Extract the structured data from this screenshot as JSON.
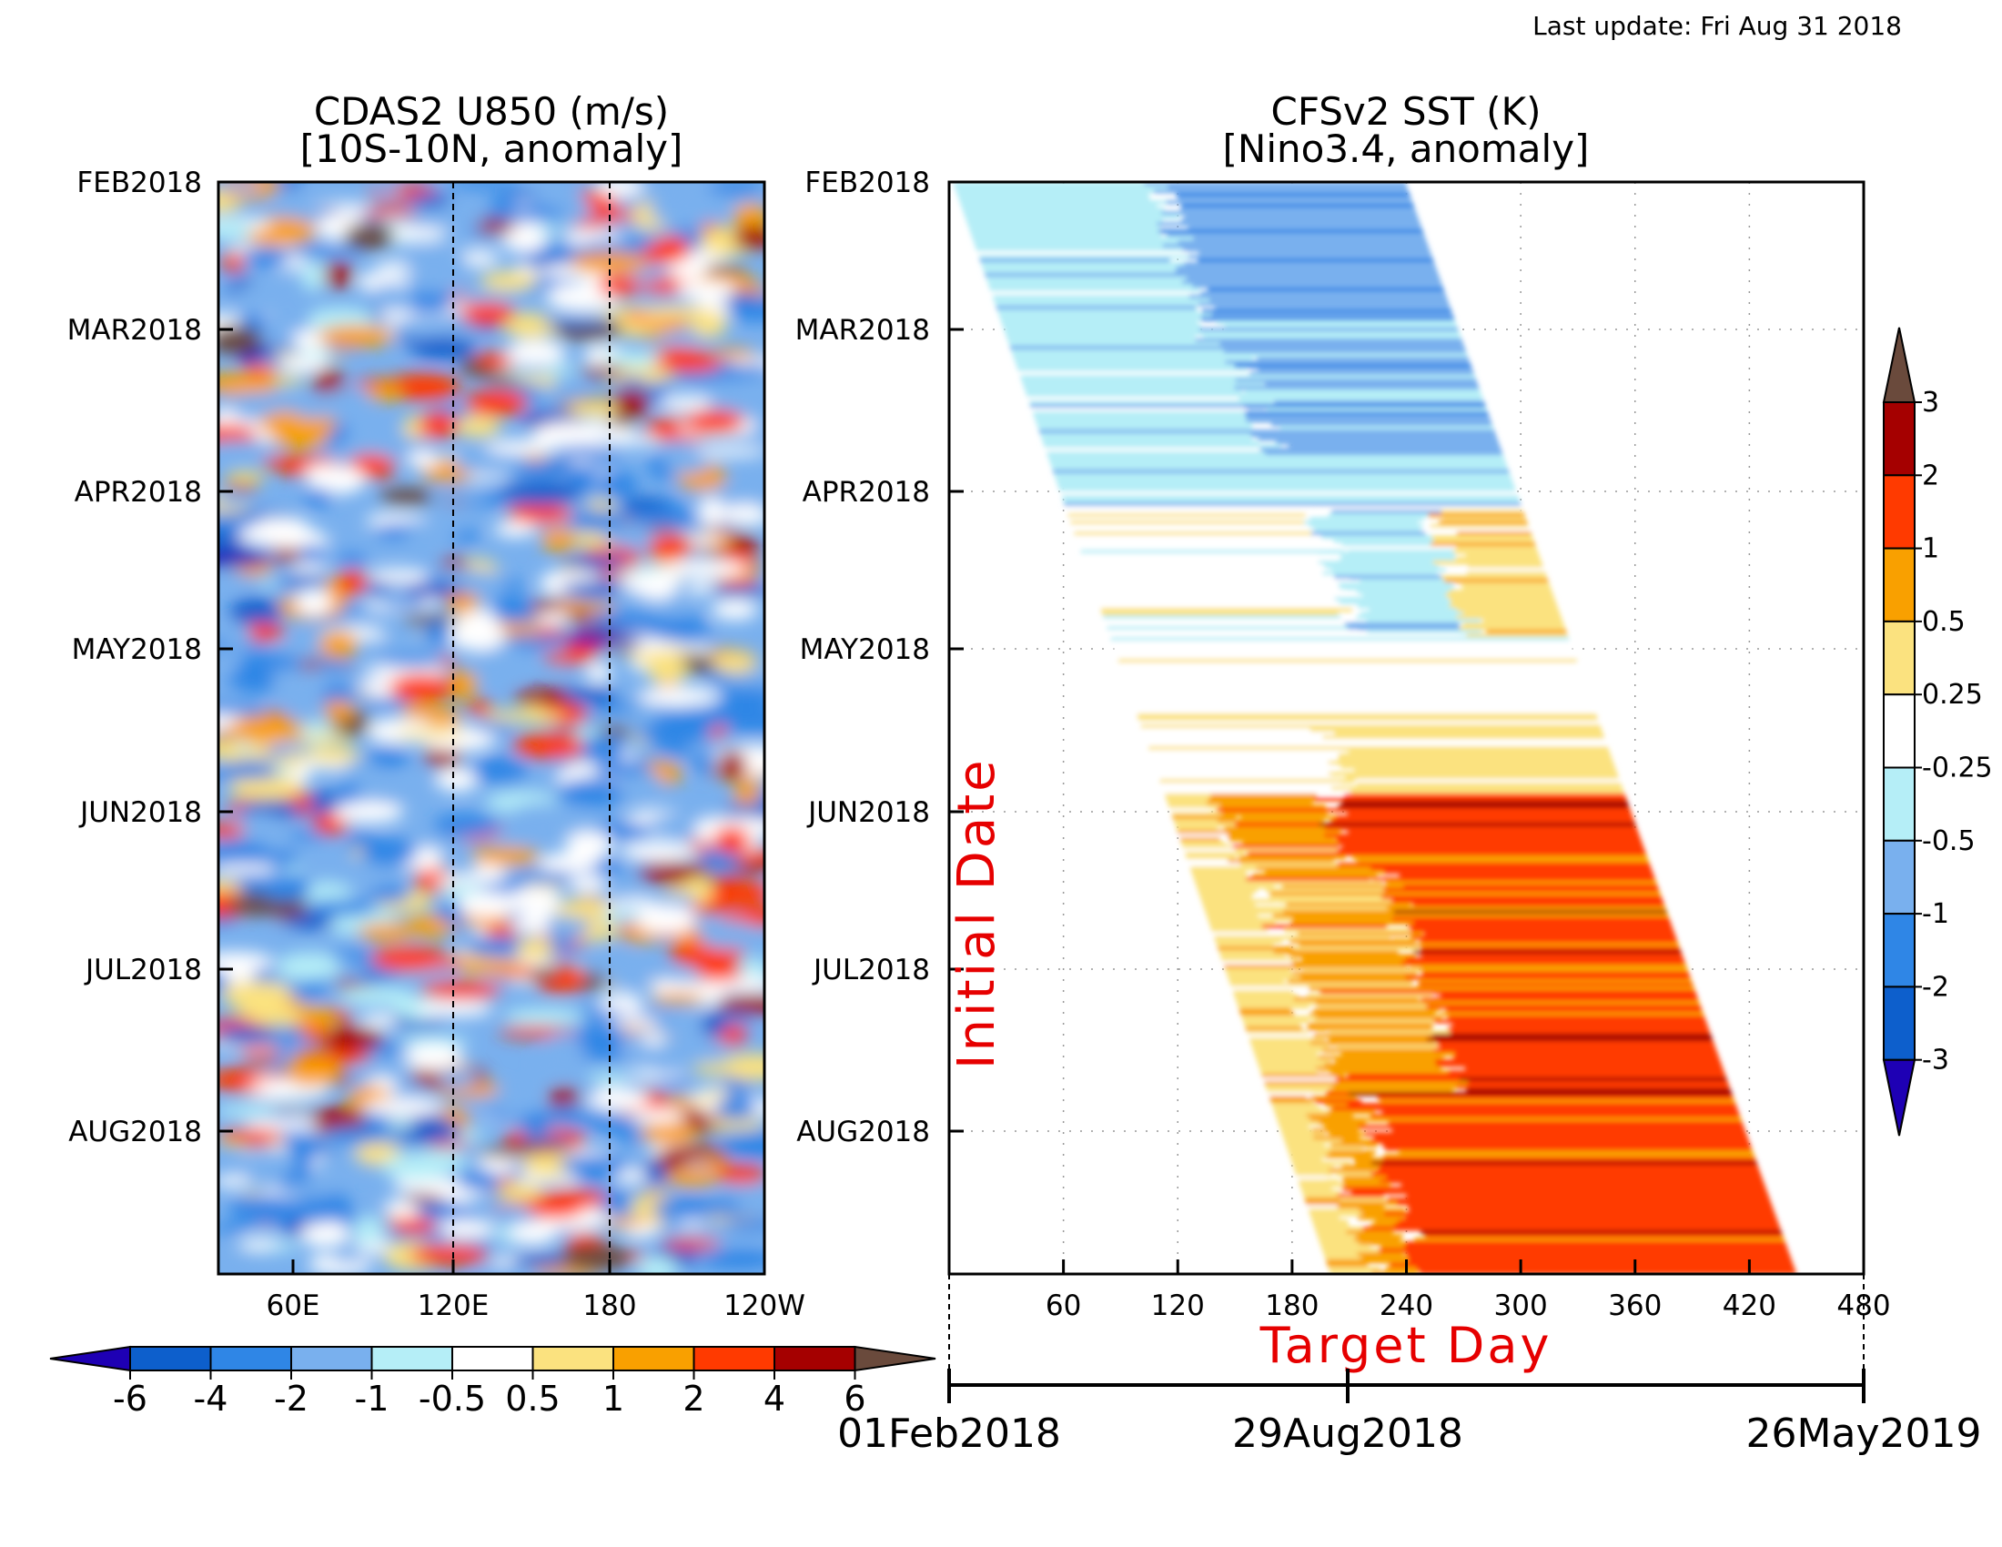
{
  "header": {
    "last_update": "Last update: Fri Aug 31 2018"
  },
  "chart_data": [
    {
      "type": "heatmap",
      "title": "CDAS2 U850 (m/s)",
      "subtitle": "[10S-10N, anomaly]",
      "x_ticks": [
        "60E",
        "120E",
        "180",
        "120W"
      ],
      "y_ticks": [
        "FEB2018",
        "MAR2018",
        "APR2018",
        "MAY2018",
        "JUN2018",
        "JUL2018",
        "AUG2018"
      ],
      "reference_lines_x": [
        "120E",
        "180"
      ],
      "colorbar": {
        "levels": [
          "-6",
          "-4",
          "-2",
          "-1",
          "-0.5",
          "0.5",
          "1",
          "2",
          "4",
          "6"
        ],
        "colors": [
          "#1e00b4",
          "#0d5fcc",
          "#2f86e6",
          "#79b0ee",
          "#b5eef7",
          "#ffffff",
          "#fbe27f",
          "#f9a000",
          "#ff3a00",
          "#a50000",
          "#6a4a3c"
        ]
      }
    },
    {
      "type": "heatmap",
      "title": "CFSv2 SST (K)",
      "subtitle": "[Nino3.4, anomaly]",
      "x_ticks": [
        "60",
        "120",
        "180",
        "240",
        "300",
        "360",
        "420",
        "480"
      ],
      "xlabel": "Target Day",
      "ylabel": "Initial Date",
      "y_ticks": [
        "FEB2018",
        "MAR2018",
        "APR2018",
        "MAY2018",
        "JUN2018",
        "JUL2018",
        "AUG2018"
      ],
      "date_axis": [
        "01Feb2018",
        "29Aug2018",
        "26May2019"
      ],
      "colorbar": {
        "levels": [
          "-3",
          "-2",
          "-1",
          "-0.5",
          "-0.25",
          "0.25",
          "0.5",
          "1",
          "2",
          "3"
        ],
        "colors": [
          "#1e00b4",
          "#0d5fcc",
          "#2f86e6",
          "#79b0ee",
          "#b5eef7",
          "#ffffff",
          "#fbe27f",
          "#f9a000",
          "#ff3a00",
          "#a50000",
          "#6a4a3c"
        ]
      }
    }
  ]
}
